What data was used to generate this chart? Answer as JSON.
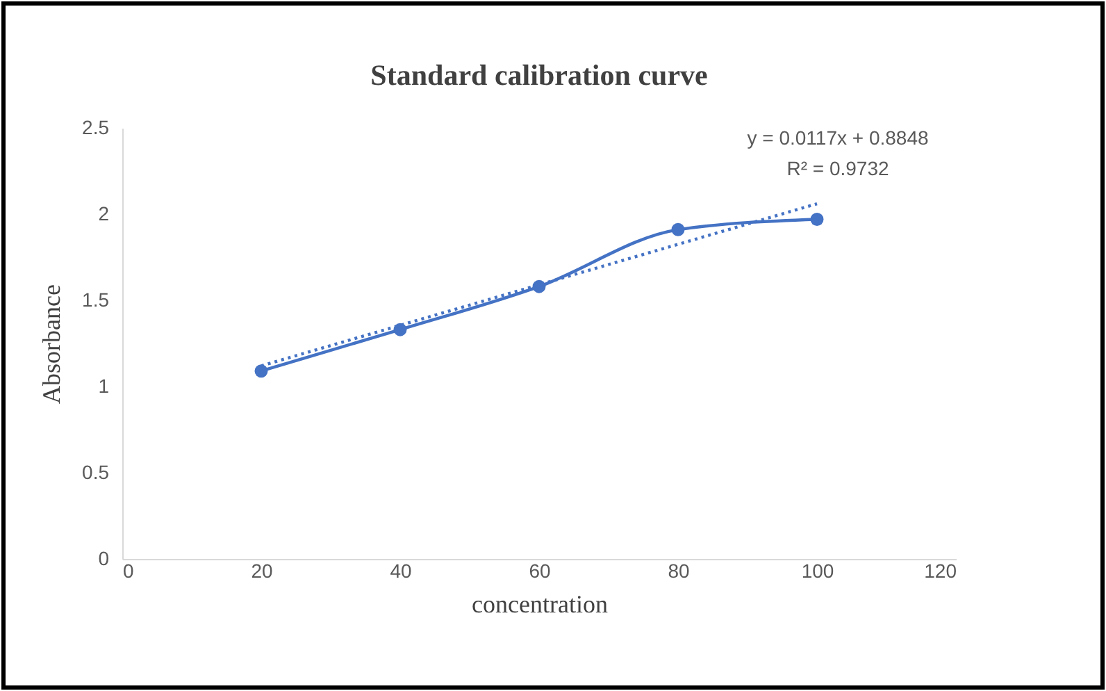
{
  "chart_data": {
    "type": "line",
    "title": "Standard calibration curve",
    "xlabel": "concentration",
    "ylabel": "Absorbance",
    "x": [
      20,
      40,
      60,
      80,
      100
    ],
    "series": [
      {
        "color": "#4472c4",
        "values": [
          1.09,
          1.33,
          1.58,
          1.91,
          1.97
        ],
        "marker": "circle",
        "line_style": "solid"
      },
      {
        "type": "line",
        "color": "#4472c4",
        "x": [
          20,
          100
        ],
        "values": [
          1.12,
          2.06
        ],
        "marker": "none",
        "line_style": "dotted"
      }
    ],
    "annotations": [
      "y = 0.0117x + 0.8848",
      "R² = 0.9732"
    ],
    "xlim": [
      0,
      120
    ],
    "xticks": [
      0,
      20,
      40,
      60,
      80,
      100,
      120
    ],
    "ylim": [
      0,
      2.5
    ],
    "yticks": [
      0,
      0.5,
      1,
      1.5,
      2,
      2.5
    ],
    "grid": false
  }
}
